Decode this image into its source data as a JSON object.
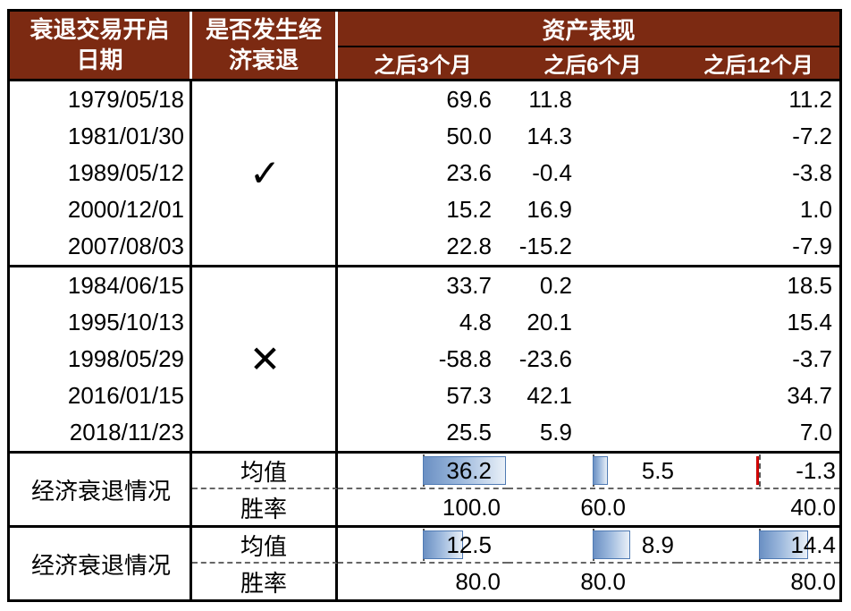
{
  "header": {
    "col_date_line1": "衰退交易开启",
    "col_date_line2": "日期",
    "col_recession_line1": "是否发生经",
    "col_recession_line2": "济衰退",
    "asset_performance": "资产表现",
    "sub_columns": [
      "之后3个月",
      "之后6个月",
      "之后12个月"
    ]
  },
  "groups": [
    {
      "mark": "✓",
      "rows": [
        {
          "date": "1979/05/18",
          "m3": "69.6",
          "m6": "11.8",
          "m12": "11.2"
        },
        {
          "date": "1981/01/30",
          "m3": "50.0",
          "m6": "14.3",
          "m12": "-7.2"
        },
        {
          "date": "1989/05/12",
          "m3": "23.6",
          "m6": "-0.4",
          "m12": "-3.8"
        },
        {
          "date": "2000/12/01",
          "m3": "15.2",
          "m6": "16.9",
          "m12": "1.0"
        },
        {
          "date": "2007/08/03",
          "m3": "22.8",
          "m6": "-15.2",
          "m12": "-7.9"
        }
      ]
    },
    {
      "mark": "✕",
      "rows": [
        {
          "date": "1984/06/15",
          "m3": "33.7",
          "m6": "0.2",
          "m12": "18.5"
        },
        {
          "date": "1995/10/13",
          "m3": "4.8",
          "m6": "20.1",
          "m12": "15.4"
        },
        {
          "date": "1998/05/29",
          "m3": "-58.8",
          "m6": "-23.6",
          "m12": "-3.7"
        },
        {
          "date": "2016/01/15",
          "m3": "57.3",
          "m6": "42.1",
          "m12": "34.7"
        },
        {
          "date": "2018/11/23",
          "m3": "25.5",
          "m6": "5.9",
          "m12": "7.0"
        }
      ]
    }
  ],
  "summaries": [
    {
      "label": "经济衰退情况",
      "mean_label": "均值",
      "win_label": "胜率",
      "mean": [
        "36.2",
        "5.5",
        "-1.3"
      ],
      "mean_bars": [
        93,
        17,
        -3
      ],
      "win": [
        "100.0",
        "60.0",
        "40.0"
      ]
    },
    {
      "label": "经济衰退情况",
      "mean_label": "均值",
      "win_label": "胜率",
      "mean": [
        "12.5",
        "8.9",
        "14.4"
      ],
      "mean_bars": [
        45,
        42,
        55
      ],
      "win": [
        "80.0",
        "80.0",
        "80.0"
      ]
    }
  ],
  "colors": {
    "header_bg": "#7C2A12",
    "header_text": "#FFFFFF",
    "bar_fill_start": "#6B90C3",
    "bar_fill_end": "#E9F0F8",
    "bar_border": "#4F7AB3",
    "negative_bar": "#E00000",
    "text": "#000000",
    "border": "#000000"
  },
  "chart_data": {
    "type": "table",
    "columns": [
      "衰退交易开启日期",
      "是否发生经济衰退",
      "之后3个月",
      "之后6个月",
      "之后12个月"
    ],
    "rows": [
      [
        "1979/05/18",
        "✓",
        69.6,
        11.8,
        11.2
      ],
      [
        "1981/01/30",
        "✓",
        50.0,
        14.3,
        -7.2
      ],
      [
        "1989/05/12",
        "✓",
        23.6,
        -0.4,
        -3.8
      ],
      [
        "2000/12/01",
        "✓",
        15.2,
        16.9,
        1.0
      ],
      [
        "2007/08/03",
        "✓",
        22.8,
        -15.2,
        -7.9
      ],
      [
        "1984/06/15",
        "✕",
        33.7,
        0.2,
        18.5
      ],
      [
        "1995/10/13",
        "✕",
        4.8,
        20.1,
        15.4
      ],
      [
        "1998/05/29",
        "✕",
        -58.8,
        -23.6,
        -3.7
      ],
      [
        "2016/01/15",
        "✕",
        57.3,
        42.1,
        34.7
      ],
      [
        "2018/11/23",
        "✕",
        25.5,
        5.9,
        7.0
      ]
    ],
    "summary_rows": [
      [
        "经济衰退情况",
        "均值",
        36.2,
        5.5,
        -1.3
      ],
      [
        "经济衰退情况",
        "胜率",
        100.0,
        60.0,
        40.0
      ],
      [
        "经济衰退情况",
        "均值",
        12.5,
        8.9,
        14.4
      ],
      [
        "经济衰退情况",
        "胜率",
        80.0,
        80.0,
        80.0
      ]
    ],
    "notes": "均值 rows have blue gradient data bars with axis at cell midpoint; negative values drawn as red bar left of axis"
  }
}
